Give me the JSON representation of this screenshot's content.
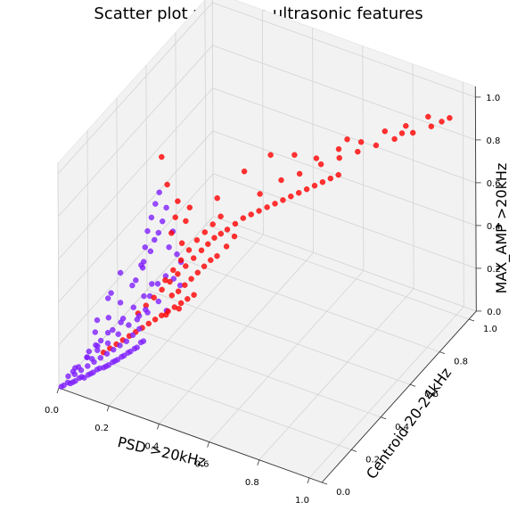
{
  "chart_data": {
    "type": "scatter",
    "projection": "3d",
    "title": "Scatter plot using the ultrasonic features",
    "xlabel": "PSD >20kHz",
    "ylabel": "Centroid 20-24kHz",
    "zlabel": "MAX_AMP >20kHz",
    "xlim": [
      0,
      1.05
    ],
    "ylim": [
      0,
      1.05
    ],
    "zlim": [
      0,
      1.05
    ],
    "xticks": [
      "0.0",
      "0.2",
      "0.4",
      "0.6",
      "0.8",
      "1.0"
    ],
    "yticks": [
      "0.0",
      "0.2",
      "0.4",
      "0.6",
      "0.8",
      "1.0"
    ],
    "zticks": [
      "0.0",
      "0.2",
      "0.4",
      "0.6",
      "0.8",
      "1.0"
    ],
    "grid": true,
    "colors": {
      "class_a": "#7f1fff",
      "class_b": "#ff0000",
      "pane": "#f2f2f2",
      "grid": "#d4d4d4"
    },
    "series": [
      {
        "color": "#7f1fff",
        "points": [
          [
            0.01,
            0.0,
            0.01
          ],
          [
            0.02,
            0.0,
            0.02
          ],
          [
            0.03,
            0.01,
            0.03
          ],
          [
            0.04,
            0.01,
            0.03
          ],
          [
            0.05,
            0.01,
            0.04
          ],
          [
            0.06,
            0.01,
            0.05
          ],
          [
            0.07,
            0.02,
            0.06
          ],
          [
            0.08,
            0.02,
            0.07
          ],
          [
            0.09,
            0.02,
            0.07
          ],
          [
            0.1,
            0.03,
            0.08
          ],
          [
            0.11,
            0.03,
            0.09
          ],
          [
            0.12,
            0.03,
            0.1
          ],
          [
            0.13,
            0.04,
            0.11
          ],
          [
            0.14,
            0.04,
            0.12
          ],
          [
            0.15,
            0.05,
            0.12
          ],
          [
            0.16,
            0.05,
            0.13
          ],
          [
            0.17,
            0.05,
            0.14
          ],
          [
            0.18,
            0.06,
            0.15
          ],
          [
            0.19,
            0.06,
            0.16
          ],
          [
            0.2,
            0.06,
            0.17
          ],
          [
            0.21,
            0.07,
            0.18
          ],
          [
            0.22,
            0.07,
            0.19
          ],
          [
            0.23,
            0.08,
            0.2
          ],
          [
            0.24,
            0.08,
            0.21
          ],
          [
            0.25,
            0.09,
            0.22
          ],
          [
            0.26,
            0.09,
            0.23
          ],
          [
            0.27,
            0.1,
            0.25
          ],
          [
            0.28,
            0.1,
            0.26
          ],
          [
            0.02,
            0.03,
            0.04
          ],
          [
            0.04,
            0.04,
            0.05
          ],
          [
            0.06,
            0.05,
            0.07
          ],
          [
            0.08,
            0.06,
            0.09
          ],
          [
            0.1,
            0.07,
            0.11
          ],
          [
            0.12,
            0.08,
            0.13
          ],
          [
            0.14,
            0.09,
            0.15
          ],
          [
            0.16,
            0.1,
            0.17
          ],
          [
            0.18,
            0.11,
            0.19
          ],
          [
            0.2,
            0.12,
            0.21
          ],
          [
            0.22,
            0.13,
            0.24
          ],
          [
            0.24,
            0.14,
            0.27
          ],
          [
            0.03,
            0.06,
            0.06
          ],
          [
            0.06,
            0.09,
            0.1
          ],
          [
            0.09,
            0.11,
            0.13
          ],
          [
            0.12,
            0.13,
            0.16
          ],
          [
            0.15,
            0.15,
            0.2
          ],
          [
            0.18,
            0.17,
            0.24
          ],
          [
            0.21,
            0.19,
            0.28
          ],
          [
            0.23,
            0.2,
            0.31
          ],
          [
            0.05,
            0.12,
            0.1
          ],
          [
            0.08,
            0.15,
            0.14
          ],
          [
            0.11,
            0.18,
            0.18
          ],
          [
            0.14,
            0.2,
            0.23
          ],
          [
            0.17,
            0.22,
            0.28
          ],
          [
            0.2,
            0.24,
            0.33
          ],
          [
            0.22,
            0.26,
            0.38
          ],
          [
            0.04,
            0.18,
            0.14
          ],
          [
            0.07,
            0.22,
            0.19
          ],
          [
            0.1,
            0.25,
            0.25
          ],
          [
            0.13,
            0.28,
            0.32
          ],
          [
            0.16,
            0.3,
            0.4
          ],
          [
            0.18,
            0.32,
            0.47
          ],
          [
            0.2,
            0.34,
            0.55
          ],
          [
            0.17,
            0.3,
            0.5
          ],
          [
            0.18,
            0.3,
            0.58
          ],
          [
            0.19,
            0.31,
            0.64
          ],
          [
            0.2,
            0.32,
            0.7
          ],
          [
            0.21,
            0.33,
            0.75
          ],
          [
            0.17,
            0.29,
            0.44
          ],
          [
            0.19,
            0.33,
            0.52
          ],
          [
            0.21,
            0.35,
            0.6
          ],
          [
            0.22,
            0.36,
            0.66
          ],
          [
            0.23,
            0.36,
            0.48
          ],
          [
            0.24,
            0.37,
            0.55
          ],
          [
            0.15,
            0.27,
            0.36
          ],
          [
            0.16,
            0.29,
            0.42
          ],
          [
            0.25,
            0.38,
            0.44
          ],
          [
            0.26,
            0.39,
            0.4
          ],
          [
            0.2,
            0.28,
            0.3
          ],
          [
            0.22,
            0.3,
            0.35
          ],
          [
            0.24,
            0.32,
            0.38
          ],
          [
            0.26,
            0.34,
            0.36
          ],
          [
            0.28,
            0.35,
            0.33
          ],
          [
            0.02,
            0.1,
            0.03
          ],
          [
            0.05,
            0.14,
            0.05
          ],
          [
            0.03,
            0.2,
            0.06
          ],
          [
            0.01,
            0.08,
            0.02
          ],
          [
            0.09,
            0.04,
            0.15
          ],
          [
            0.12,
            0.06,
            0.2
          ],
          [
            0.15,
            0.08,
            0.26
          ],
          [
            0.19,
            0.1,
            0.31
          ],
          [
            0.22,
            0.16,
            0.29
          ],
          [
            0.25,
            0.18,
            0.32
          ],
          [
            0.27,
            0.22,
            0.35
          ],
          [
            0.29,
            0.24,
            0.3
          ],
          [
            0.13,
            0.2,
            0.44
          ],
          [
            0.11,
            0.17,
            0.36
          ],
          [
            0.08,
            0.2,
            0.3
          ],
          [
            0.06,
            0.16,
            0.22
          ]
        ]
      },
      {
        "color": "#ff0000",
        "points": [
          [
            0.12,
            0.1,
            0.14
          ],
          [
            0.14,
            0.11,
            0.16
          ],
          [
            0.16,
            0.12,
            0.18
          ],
          [
            0.18,
            0.13,
            0.2
          ],
          [
            0.2,
            0.14,
            0.22
          ],
          [
            0.22,
            0.15,
            0.24
          ],
          [
            0.24,
            0.16,
            0.26
          ],
          [
            0.26,
            0.17,
            0.28
          ],
          [
            0.28,
            0.18,
            0.3
          ],
          [
            0.3,
            0.19,
            0.32
          ],
          [
            0.32,
            0.2,
            0.34
          ],
          [
            0.34,
            0.21,
            0.36
          ],
          [
            0.36,
            0.22,
            0.38
          ],
          [
            0.38,
            0.23,
            0.4
          ],
          [
            0.4,
            0.24,
            0.42
          ],
          [
            0.2,
            0.2,
            0.28
          ],
          [
            0.22,
            0.22,
            0.31
          ],
          [
            0.24,
            0.24,
            0.34
          ],
          [
            0.26,
            0.26,
            0.37
          ],
          [
            0.28,
            0.28,
            0.4
          ],
          [
            0.3,
            0.3,
            0.43
          ],
          [
            0.32,
            0.32,
            0.46
          ],
          [
            0.34,
            0.34,
            0.49
          ],
          [
            0.36,
            0.36,
            0.52
          ],
          [
            0.38,
            0.37,
            0.55
          ],
          [
            0.4,
            0.38,
            0.58
          ],
          [
            0.42,
            0.39,
            0.6
          ],
          [
            0.25,
            0.3,
            0.38
          ],
          [
            0.27,
            0.32,
            0.42
          ],
          [
            0.29,
            0.34,
            0.46
          ],
          [
            0.31,
            0.36,
            0.5
          ],
          [
            0.33,
            0.38,
            0.54
          ],
          [
            0.35,
            0.4,
            0.57
          ],
          [
            0.37,
            0.42,
            0.6
          ],
          [
            0.39,
            0.44,
            0.63
          ],
          [
            0.3,
            0.26,
            0.36
          ],
          [
            0.32,
            0.27,
            0.38
          ],
          [
            0.34,
            0.28,
            0.41
          ],
          [
            0.36,
            0.29,
            0.44
          ],
          [
            0.38,
            0.3,
            0.47
          ],
          [
            0.4,
            0.31,
            0.5
          ],
          [
            0.42,
            0.32,
            0.53
          ],
          [
            0.44,
            0.33,
            0.55
          ],
          [
            0.24,
            0.36,
            0.55
          ],
          [
            0.25,
            0.37,
            0.62
          ],
          [
            0.26,
            0.37,
            0.7
          ],
          [
            0.27,
            0.38,
            0.5
          ],
          [
            0.28,
            0.39,
            0.6
          ],
          [
            0.29,
            0.4,
            0.66
          ],
          [
            0.23,
            0.35,
            0.78
          ],
          [
            0.22,
            0.33,
            0.92
          ],
          [
            0.44,
            0.4,
            0.62
          ],
          [
            0.46,
            0.42,
            0.64
          ],
          [
            0.48,
            0.44,
            0.66
          ],
          [
            0.5,
            0.46,
            0.67
          ],
          [
            0.52,
            0.48,
            0.68
          ],
          [
            0.54,
            0.5,
            0.69
          ],
          [
            0.56,
            0.52,
            0.7
          ],
          [
            0.58,
            0.54,
            0.71
          ],
          [
            0.6,
            0.56,
            0.72
          ],
          [
            0.62,
            0.58,
            0.73
          ],
          [
            0.64,
            0.6,
            0.74
          ],
          [
            0.66,
            0.62,
            0.75
          ],
          [
            0.68,
            0.64,
            0.76
          ],
          [
            0.7,
            0.66,
            0.77
          ],
          [
            0.72,
            0.68,
            0.78
          ],
          [
            0.5,
            0.52,
            0.72
          ],
          [
            0.55,
            0.58,
            0.76
          ],
          [
            0.6,
            0.62,
            0.78
          ],
          [
            0.65,
            0.68,
            0.8
          ],
          [
            0.7,
            0.72,
            0.82
          ],
          [
            0.75,
            0.76,
            0.84
          ],
          [
            0.8,
            0.8,
            0.86
          ],
          [
            0.85,
            0.84,
            0.88
          ],
          [
            0.9,
            0.88,
            0.9
          ],
          [
            0.95,
            0.92,
            0.92
          ],
          [
            0.98,
            0.94,
            0.94
          ],
          [
            1.0,
            0.96,
            0.95
          ],
          [
            0.62,
            0.7,
            0.8
          ],
          [
            0.68,
            0.75,
            0.83
          ],
          [
            0.74,
            0.8,
            0.85
          ],
          [
            0.8,
            0.86,
            0.88
          ],
          [
            0.86,
            0.9,
            0.9
          ],
          [
            0.92,
            0.95,
            0.93
          ],
          [
            0.58,
            0.62,
            0.86
          ],
          [
            0.72,
            0.74,
            0.9
          ],
          [
            0.88,
            0.84,
            0.92
          ],
          [
            0.45,
            0.5,
            0.82
          ],
          [
            0.52,
            0.56,
            0.88
          ],
          [
            0.4,
            0.4,
            0.75
          ],
          [
            0.46,
            0.36,
            0.58
          ],
          [
            0.48,
            0.38,
            0.62
          ],
          [
            0.3,
            0.22,
            0.3
          ],
          [
            0.34,
            0.24,
            0.33
          ]
        ]
      }
    ]
  }
}
